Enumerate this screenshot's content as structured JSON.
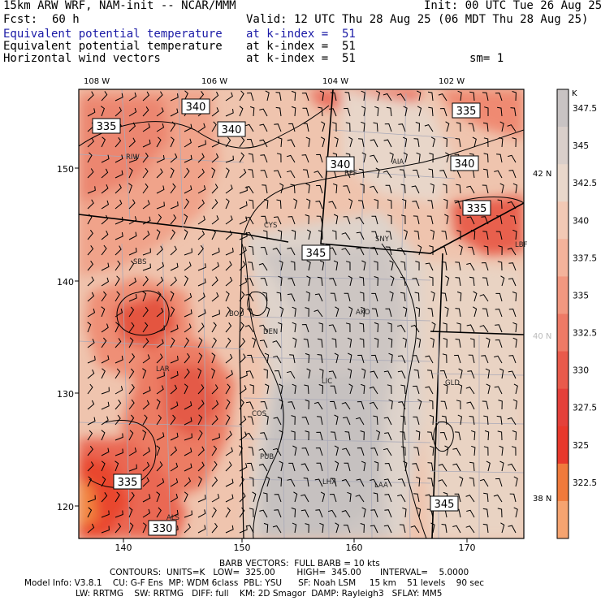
{
  "header": {
    "model": "15km ARW WRF, NAM-init -- NCAR/MMM",
    "init": "Init: 00 UTC Tue 26 Aug 25",
    "fcst_label": "Fcst:",
    "fcst_value": "60 h",
    "valid": "Valid: 12 UTC Thu 28 Aug 25 (06 MDT Thu 28 Aug 25)",
    "fields": [
      {
        "name": "Equivalent potential temperature",
        "level": "at k-index =  51",
        "color": "#1a1aa6"
      },
      {
        "name": "Equivalent potential temperature",
        "level": "at k-index =  51",
        "color": "#000000"
      },
      {
        "name": "Horizontal wind vectors",
        "level": "at k-index =  51",
        "color": "#000000"
      }
    ],
    "smoothing": "sm= 1"
  },
  "map": {
    "lon_labels": [
      "108 W",
      "106 W",
      "104 W",
      "102 W"
    ],
    "lat_labels": [
      "42 N",
      "40 N",
      "38 N"
    ],
    "grid_x_ticks": [
      "140",
      "150",
      "160",
      "170"
    ],
    "grid_y_ticks": [
      "150",
      "140",
      "130",
      "120"
    ],
    "contour_labels": [
      "335",
      "340",
      "340",
      "340",
      "335",
      "340",
      "335",
      "345",
      "335",
      "330",
      "345"
    ],
    "stations": [
      "RIW",
      "BFF",
      "AIA",
      "CYS",
      "SNY",
      "LBF",
      "SBS",
      "BOU",
      "AKO",
      "DEN",
      "LAR",
      "GLD",
      "LIC",
      "COS",
      "PUB",
      "LHX",
      "LAA",
      "ALS"
    ]
  },
  "colorbar": {
    "unit": "K",
    "ticks": [
      "347.5",
      "345",
      "342.5",
      "340",
      "337.5",
      "335",
      "332.5",
      "330",
      "327.5",
      "325",
      "322.5"
    ],
    "colors": [
      "#c8c3c3",
      "#d9cfca",
      "#e9d8cb",
      "#f2c9b5",
      "#f4b39b",
      "#f29880",
      "#ee7a66",
      "#e95a4b",
      "#e4403a",
      "#e8382c",
      "#f07a3c",
      "#f6a470"
    ]
  },
  "footer": {
    "barb": "BARB VECTORS:  FULL BARB = 10 kts",
    "contours": "CONTOURS:  UNITS=K   LOW=  325.00        HIGH=  345.00       INTERVAL=    5.0000",
    "line1": "Model Info: V3.8.1    CU: G-F Ens  MP: WDM 6class  PBL: YSU      SF: Noah LSM     15 km    51 levels    90 sec",
    "line2": "LW: RRTMG    SW: RRTMG   DIFF: full    KM: 2D Smagor  DAMP: Rayleigh3   SFLAY: MM5"
  }
}
